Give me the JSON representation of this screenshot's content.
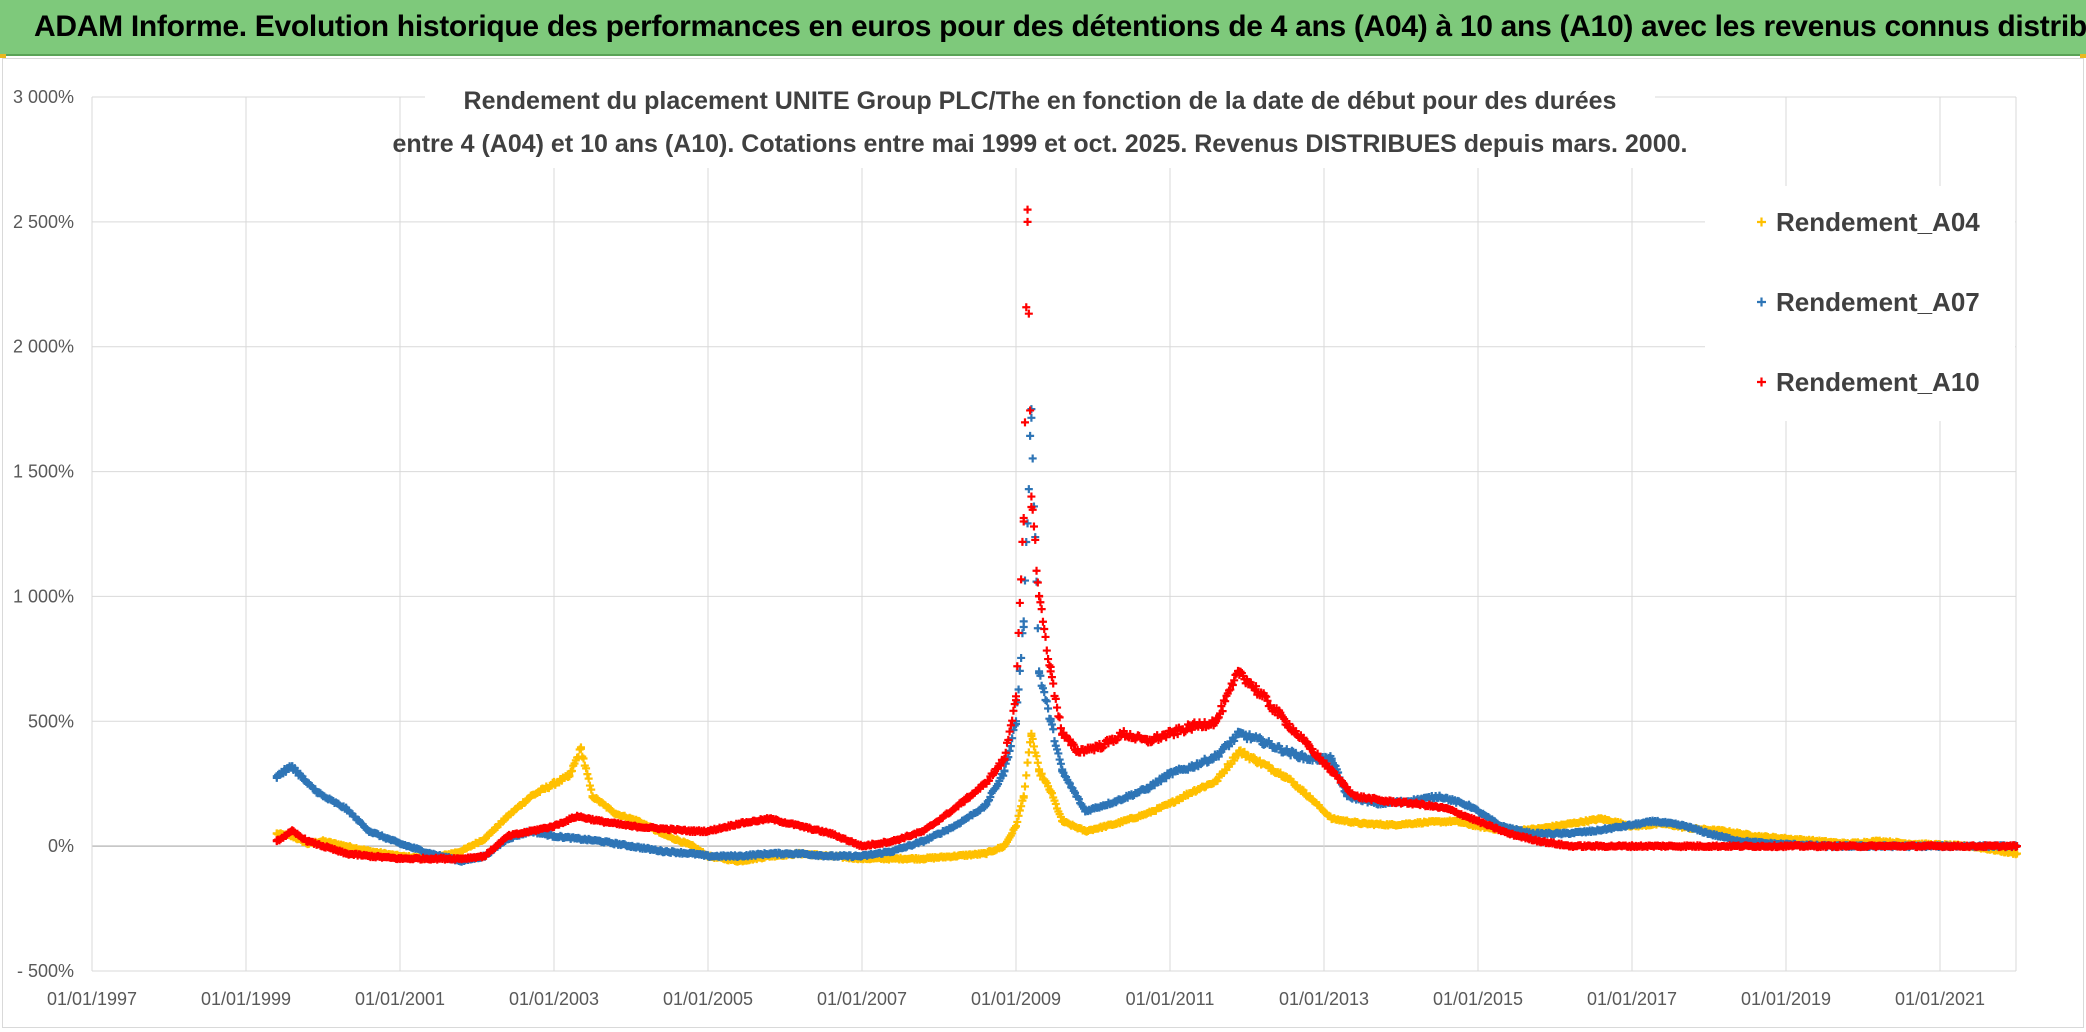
{
  "header": {
    "title": "ADAM Informe. Evolution historique des performances en euros pour des détentions de 4 ans (A04) à 10 ans (A10) avec les revenus connus distribués"
  },
  "colors": {
    "header_bg": "#7ec97b",
    "A04": "#ffc000",
    "A07": "#2e75b6",
    "A10": "#ff0000",
    "grid": "#d9d9d9"
  },
  "chart_data": {
    "type": "scatter",
    "title_line1": "Rendement du placement UNITE Group PLC/The en fonction de la date de début pour des durées",
    "title_line2": "entre 4 (A04) et 10 ans (A10). Cotations entre mai 1999 et oct. 2025. Revenus DISTRIBUES depuis mars. 2000.",
    "xlabel": "",
    "ylabel": "",
    "ylim": [
      -500,
      3000
    ],
    "xlim": [
      1997.0,
      2022.5
    ],
    "y_ticks": [
      -500,
      0,
      500,
      1000,
      1500,
      2000,
      2500,
      3000
    ],
    "y_tick_labels": [
      "- 500%",
      "0%",
      "500%",
      "1 000%",
      "1 500%",
      "2 000%",
      "2 500%",
      "3 000%"
    ],
    "x_ticks": [
      1997,
      1999,
      2001,
      2003,
      2005,
      2007,
      2009,
      2011,
      2013,
      2015,
      2017,
      2019,
      2021
    ],
    "x_tick_labels": [
      "01/01/1997",
      "01/01/1999",
      "01/01/2001",
      "01/01/2003",
      "01/01/2005",
      "01/01/2007",
      "01/01/2009",
      "01/01/2011",
      "01/01/2013",
      "01/01/2015",
      "01/01/2017",
      "01/01/2019",
      "01/01/2021"
    ],
    "grid": true,
    "legend_position": "top-right",
    "series": [
      {
        "name": "Rendement_A04",
        "x": [
          1999.4,
          1999.6,
          1999.8,
          2000.0,
          2000.3,
          2000.6,
          2001.0,
          2001.4,
          2001.8,
          2002.1,
          2002.4,
          2002.7,
          2003.0,
          2003.2,
          2003.35,
          2003.5,
          2003.8,
          2004.1,
          2004.4,
          2004.8,
          2005.0,
          2005.4,
          2005.8,
          2006.2,
          2006.6,
          2007.0,
          2007.4,
          2007.8,
          2008.2,
          2008.6,
          2008.85,
          2009.0,
          2009.1,
          2009.2,
          2009.3,
          2009.45,
          2009.6,
          2009.9,
          2010.3,
          2010.7,
          2011.0,
          2011.3,
          2011.6,
          2011.9,
          2012.2,
          2012.5,
          2012.8,
          2013.1,
          2013.5,
          2013.9,
          2014.3,
          2014.7,
          2015.0,
          2015.4,
          2015.8,
          2016.2,
          2016.6,
          2017.0,
          2017.4,
          2017.8,
          2018.2,
          2018.6,
          2019.0,
          2019.4,
          2019.8,
          2020.2,
          2020.6,
          2021.0,
          2021.4,
          2021.8,
          2022.0
        ],
        "values": [
          50,
          40,
          10,
          20,
          0,
          -20,
          -40,
          -50,
          -20,
          30,
          120,
          200,
          250,
          280,
          390,
          200,
          130,
          100,
          50,
          0,
          -40,
          -60,
          -40,
          -30,
          -40,
          -50,
          -50,
          -50,
          -40,
          -30,
          0,
          80,
          200,
          450,
          300,
          220,
          100,
          60,
          90,
          130,
          170,
          220,
          260,
          380,
          330,
          280,
          200,
          110,
          90,
          85,
          95,
          100,
          80,
          60,
          70,
          90,
          110,
          80,
          90,
          70,
          60,
          40,
          30,
          20,
          10,
          20,
          10,
          5,
          0,
          -20,
          -30
        ]
      },
      {
        "name": "Rendement_A07",
        "x": [
          1999.4,
          1999.6,
          1999.8,
          2000.0,
          2000.3,
          2000.6,
          2001.0,
          2001.4,
          2001.8,
          2002.1,
          2002.4,
          2002.7,
          2003.0,
          2003.3,
          2003.6,
          2004.0,
          2004.4,
          2004.8,
          2005.0,
          2005.4,
          2005.8,
          2006.2,
          2006.6,
          2007.0,
          2007.4,
          2007.8,
          2008.2,
          2008.6,
          2008.85,
          2009.0,
          2009.1,
          2009.2,
          2009.3,
          2009.45,
          2009.6,
          2009.9,
          2010.3,
          2010.7,
          2011.0,
          2011.3,
          2011.6,
          2011.9,
          2012.2,
          2012.5,
          2012.8,
          2013.1,
          2013.3,
          2013.7,
          2014.1,
          2014.5,
          2014.9,
          2015.3,
          2015.7,
          2016.1,
          2016.5,
          2016.9,
          2017.3,
          2017.7,
          2018.0,
          2018.4,
          2018.8,
          2019.2,
          2019.6,
          2020.0,
          2020.5,
          2021.0,
          2021.5,
          2022.0
        ],
        "values": [
          280,
          320,
          250,
          200,
          150,
          60,
          10,
          -30,
          -60,
          -40,
          30,
          60,
          40,
          30,
          20,
          0,
          -20,
          -30,
          -40,
          -40,
          -30,
          -30,
          -40,
          -40,
          -20,
          20,
          80,
          160,
          300,
          500,
          900,
          1750,
          700,
          500,
          300,
          140,
          180,
          230,
          290,
          320,
          360,
          450,
          420,
          380,
          350,
          350,
          200,
          170,
          180,
          200,
          160,
          80,
          50,
          50,
          60,
          80,
          100,
          80,
          50,
          20,
          10,
          5,
          0,
          0,
          0,
          0,
          0,
          0
        ]
      },
      {
        "name": "Rendement_A10",
        "x": [
          1999.4,
          1999.6,
          1999.8,
          2000.0,
          2000.3,
          2000.6,
          2001.0,
          2001.4,
          2001.8,
          2002.1,
          2002.4,
          2002.7,
          2003.0,
          2003.3,
          2003.6,
          2004.0,
          2004.4,
          2004.8,
          2005.0,
          2005.4,
          2005.8,
          2006.2,
          2006.6,
          2007.0,
          2007.4,
          2007.8,
          2008.2,
          2008.6,
          2008.85,
          2009.0,
          2009.1,
          2009.15,
          2009.2,
          2009.3,
          2009.45,
          2009.6,
          2009.8,
          2010.1,
          2010.4,
          2010.7,
          2011.0,
          2011.3,
          2011.6,
          2011.9,
          2012.2,
          2012.5,
          2012.8,
          2013.1,
          2013.4,
          2013.8,
          2014.2,
          2014.6,
          2015.0,
          2015.4,
          2015.8,
          2016.2,
          2017.0,
          2018.0,
          2019.0,
          2020.0,
          2021.0,
          2022.0
        ],
        "values": [
          20,
          60,
          20,
          0,
          -30,
          -40,
          -50,
          -50,
          -50,
          -40,
          40,
          60,
          80,
          120,
          100,
          80,
          70,
          60,
          60,
          90,
          110,
          80,
          50,
          0,
          20,
          60,
          150,
          250,
          350,
          600,
          1300,
          2500,
          1400,
          1000,
          700,
          450,
          380,
          400,
          450,
          420,
          450,
          480,
          500,
          700,
          600,
          500,
          400,
          300,
          200,
          180,
          170,
          150,
          100,
          50,
          20,
          0,
          0,
          0,
          0,
          0,
          0,
          0
        ]
      }
    ]
  }
}
